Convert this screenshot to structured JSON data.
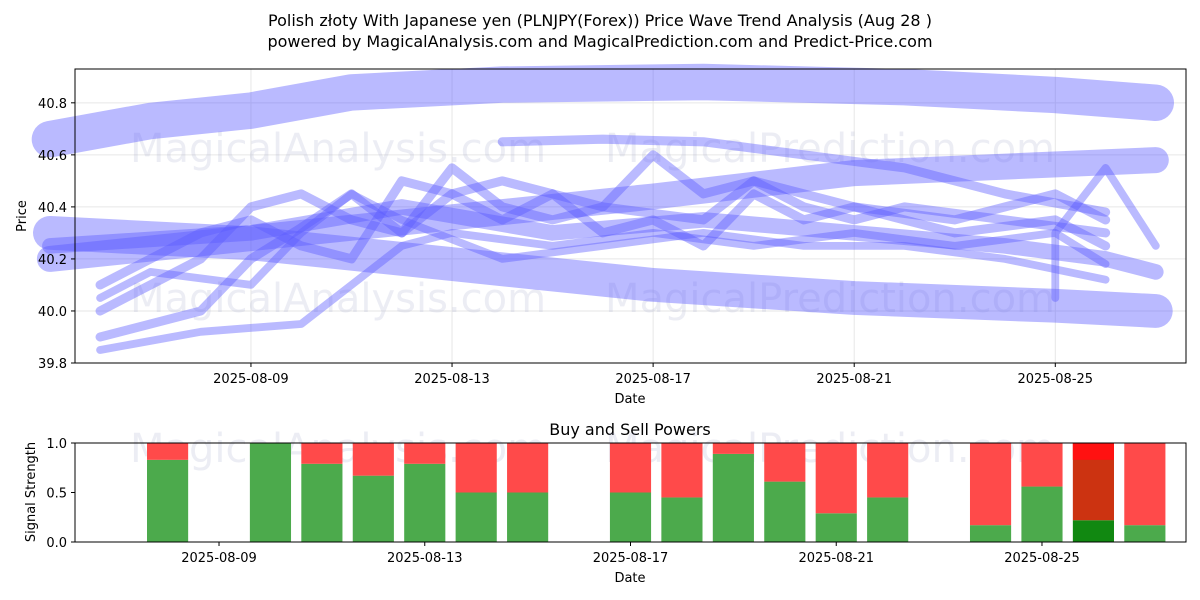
{
  "title_line1": "Polish złoty With Japanese yen (PLNJPY(Forex)) Price Wave Trend Analysis (Aug 28 )",
  "title_line2": "powered by MagicalAnalysis.com and MagicalPrediction.com and Predict-Price.com",
  "watermarks": [
    "MagicalAnalysis.com",
    "MagicalPrediction.com",
    "MagicalAnalysis.com",
    "MagicalPrediction.com",
    "MagicalAnalysis.com",
    "MagicalPrediction.com"
  ],
  "colors": {
    "wave": "#5a5aff",
    "buy": "#4caa4c",
    "sell": "#ff4a4a",
    "buy_strong": "#118811",
    "sell_strong": "#ff1111",
    "mixed": "#cc3311"
  },
  "chart_data": [
    {
      "type": "area",
      "title": "",
      "xlabel": "Date",
      "ylabel": "Price",
      "x_range": [
        "2025-08-05",
        "2025-08-27"
      ],
      "ylim": [
        39.8,
        40.93
      ],
      "x_ticks": [
        "2025-08-09",
        "2025-08-13",
        "2025-08-17",
        "2025-08-21",
        "2025-08-25"
      ],
      "y_ticks": [
        "39.8",
        "40.0",
        "40.2",
        "40.4",
        "40.6",
        "40.8"
      ],
      "grid": true,
      "series": [
        {
          "points": [
            [
              "2025-08-05",
              40.66
            ],
            [
              "2025-08-07",
              40.73
            ],
            [
              "2025-08-09",
              40.77
            ],
            [
              "2025-08-11",
              40.84
            ],
            [
              "2025-08-14",
              40.87
            ],
            [
              "2025-08-18",
              40.88
            ],
            [
              "2025-08-22",
              40.86
            ],
            [
              "2025-08-25",
              40.83
            ],
            [
              "2025-08-27",
              40.8
            ]
          ],
          "width": 0.14
        },
        {
          "points": [
            [
              "2025-08-05",
              40.2
            ],
            [
              "2025-08-09",
              40.28
            ],
            [
              "2025-08-13",
              40.36
            ],
            [
              "2025-08-17",
              40.44
            ],
            [
              "2025-08-21",
              40.53
            ],
            [
              "2025-08-27",
              40.58
            ]
          ],
          "width": 0.1
        },
        {
          "points": [
            [
              "2025-08-05",
              40.3
            ],
            [
              "2025-08-09",
              40.26
            ],
            [
              "2025-08-13",
              40.18
            ],
            [
              "2025-08-17",
              40.1
            ],
            [
              "2025-08-21",
              40.05
            ],
            [
              "2025-08-25",
              40.02
            ],
            [
              "2025-08-27",
              40.0
            ]
          ],
          "width": 0.13
        },
        {
          "points": [
            [
              "2025-08-05",
              40.25
            ],
            [
              "2025-08-09",
              40.3
            ],
            [
              "2025-08-12",
              40.4
            ],
            [
              "2025-08-15",
              40.3
            ],
            [
              "2025-08-18",
              40.35
            ],
            [
              "2025-08-21",
              40.3
            ],
            [
              "2025-08-24",
              40.25
            ],
            [
              "2025-08-26",
              40.2
            ],
            [
              "2025-08-27",
              40.15
            ]
          ],
          "width": 0.06
        },
        {
          "points": [
            [
              "2025-08-06",
              39.9
            ],
            [
              "2025-08-08",
              40.0
            ],
            [
              "2025-08-09",
              40.2
            ],
            [
              "2025-08-10",
              40.32
            ],
            [
              "2025-08-11",
              40.45
            ],
            [
              "2025-08-12",
              40.3
            ],
            [
              "2025-08-13",
              40.55
            ],
            [
              "2025-08-14",
              40.4
            ],
            [
              "2025-08-15",
              40.35
            ],
            [
              "2025-08-16",
              40.4
            ],
            [
              "2025-08-17",
              40.6
            ],
            [
              "2025-08-18",
              40.45
            ],
            [
              "2025-08-19",
              40.5
            ],
            [
              "2025-08-20",
              40.4
            ],
            [
              "2025-08-21",
              40.35
            ],
            [
              "2025-08-22",
              40.4
            ],
            [
              "2025-08-24",
              40.35
            ],
            [
              "2025-08-26",
              40.3
            ]
          ],
          "width": 0.035
        },
        {
          "points": [
            [
              "2025-08-06",
              40.1
            ],
            [
              "2025-08-07",
              40.2
            ],
            [
              "2025-08-08",
              40.3
            ],
            [
              "2025-08-09",
              40.35
            ],
            [
              "2025-08-10",
              40.25
            ],
            [
              "2025-08-11",
              40.2
            ],
            [
              "2025-08-12",
              40.5
            ],
            [
              "2025-08-13",
              40.45
            ],
            [
              "2025-08-14",
              40.35
            ],
            [
              "2025-08-15",
              40.45
            ],
            [
              "2025-08-16",
              40.3
            ],
            [
              "2025-08-17",
              40.35
            ],
            [
              "2025-08-18",
              40.25
            ],
            [
              "2025-08-19",
              40.45
            ],
            [
              "2025-08-20",
              40.35
            ],
            [
              "2025-08-21",
              40.4
            ],
            [
              "2025-08-23",
              40.3
            ],
            [
              "2025-08-25",
              40.35
            ],
            [
              "2025-08-26",
              40.25
            ]
          ],
          "width": 0.035
        },
        {
          "points": [
            [
              "2025-08-06",
              39.85
            ],
            [
              "2025-08-08",
              39.92
            ],
            [
              "2025-08-10",
              39.95
            ],
            [
              "2025-08-11",
              40.1
            ],
            [
              "2025-08-12",
              40.25
            ],
            [
              "2025-08-13",
              40.3
            ],
            [
              "2025-08-15",
              40.25
            ],
            [
              "2025-08-17",
              40.3
            ],
            [
              "2025-08-19",
              40.25
            ],
            [
              "2025-08-21",
              40.3
            ],
            [
              "2025-08-23",
              40.25
            ],
            [
              "2025-08-25",
              40.3
            ],
            [
              "2025-08-26",
              40.18
            ]
          ],
          "width": 0.03
        },
        {
          "points": [
            [
              "2025-08-06",
              40.0
            ],
            [
              "2025-08-07",
              40.1
            ],
            [
              "2025-08-08",
              40.2
            ],
            [
              "2025-08-09",
              40.4
            ],
            [
              "2025-08-10",
              40.45
            ],
            [
              "2025-08-11",
              40.35
            ],
            [
              "2025-08-12",
              40.3
            ],
            [
              "2025-08-13",
              40.45
            ],
            [
              "2025-08-14",
              40.5
            ],
            [
              "2025-08-16",
              40.4
            ],
            [
              "2025-08-18",
              40.35
            ],
            [
              "2025-08-19",
              40.5
            ],
            [
              "2025-08-21",
              40.4
            ],
            [
              "2025-08-23",
              40.35
            ],
            [
              "2025-08-25",
              40.45
            ],
            [
              "2025-08-26",
              40.35
            ]
          ],
          "width": 0.035
        },
        {
          "points": [
            [
              "2025-08-06",
              40.05
            ],
            [
              "2025-08-07",
              40.15
            ],
            [
              "2025-08-09",
              40.1
            ],
            [
              "2025-08-10",
              40.3
            ],
            [
              "2025-08-11",
              40.45
            ],
            [
              "2025-08-12",
              40.35
            ],
            [
              "2025-08-14",
              40.2
            ],
            [
              "2025-08-16",
              40.25
            ],
            [
              "2025-08-18",
              40.3
            ],
            [
              "2025-08-20",
              40.25
            ],
            [
              "2025-08-22",
              40.25
            ],
            [
              "2025-08-24",
              40.2
            ],
            [
              "2025-08-26",
              40.12
            ]
          ],
          "width": 0.03
        },
        {
          "points": [
            [
              "2025-08-14",
              40.65
            ],
            [
              "2025-08-16",
              40.66
            ],
            [
              "2025-08-18",
              40.65
            ],
            [
              "2025-08-20",
              40.6
            ],
            [
              "2025-08-22",
              40.55
            ],
            [
              "2025-08-24",
              40.45
            ],
            [
              "2025-08-26",
              40.38
            ]
          ],
          "width": 0.035
        },
        {
          "points": [
            [
              "2025-08-25",
              40.05
            ],
            [
              "2025-08-25",
              40.3
            ],
            [
              "2025-08-26",
              40.55
            ],
            [
              "2025-08-27",
              40.25
            ]
          ],
          "width": 0.03
        }
      ]
    },
    {
      "type": "bar",
      "title": "Buy and Sell Powers",
      "xlabel": "Date",
      "ylabel": "Signal Strength",
      "ylim": [
        0,
        1.0
      ],
      "y_ticks": [
        "0.0",
        "0.5",
        "1.0"
      ],
      "x_ticks": [
        "2025-08-09",
        "2025-08-13",
        "2025-08-17",
        "2025-08-21",
        "2025-08-25"
      ],
      "categories": [
        "2025-08-08",
        "2025-08-10",
        "2025-08-11",
        "2025-08-12",
        "2025-08-13",
        "2025-08-14",
        "2025-08-15",
        "2025-08-17",
        "2025-08-18",
        "2025-08-19",
        "2025-08-20",
        "2025-08-21",
        "2025-08-22",
        "2025-08-24",
        "2025-08-25",
        "2025-08-26",
        "2025-08-27"
      ],
      "series": [
        {
          "name": "Buy",
          "values": [
            0.83,
            1.0,
            0.79,
            0.67,
            0.79,
            0.5,
            0.5,
            0.5,
            0.45,
            0.89,
            0.61,
            0.29,
            0.45,
            0.17,
            0.56,
            0.22,
            0.17
          ]
        },
        {
          "name": "Sell",
          "values": [
            0.17,
            0.0,
            0.21,
            0.33,
            0.21,
            0.5,
            0.5,
            0.5,
            0.55,
            0.11,
            0.39,
            0.71,
            0.55,
            0.83,
            0.44,
            0.78,
            0.83
          ]
        }
      ]
    }
  ]
}
